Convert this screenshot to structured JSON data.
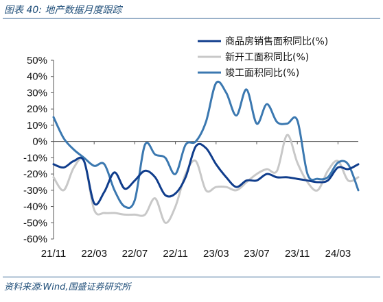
{
  "figure": {
    "title": "图表 40:  地产数据月度跟踪",
    "source": "资料来源:Wind,国盛证券研究所"
  },
  "chart_data": {
    "type": "line",
    "x": [
      "21/11",
      "21/12",
      "22/01",
      "22/02",
      "22/03",
      "22/04",
      "22/05",
      "22/06",
      "22/07",
      "22/08",
      "22/09",
      "22/10",
      "22/11",
      "22/12",
      "23/01",
      "23/02",
      "23/03",
      "23/04",
      "23/05",
      "23/06",
      "23/07",
      "23/08",
      "23/09",
      "23/10",
      "23/11",
      "23/12",
      "24/01",
      "24/02",
      "24/03",
      "24/04",
      "24/05"
    ],
    "x_tick_labels": [
      "21/11",
      "22/03",
      "22/07",
      "22/11",
      "23/03",
      "23/07",
      "23/11",
      "24/03"
    ],
    "ylim": [
      -60,
      50
    ],
    "yticks": [
      -60,
      -50,
      -40,
      -30,
      -20,
      -10,
      0,
      10,
      20,
      30,
      40,
      50
    ],
    "ytick_labels": [
      "-60%",
      "-50%",
      "-40%",
      "-30%",
      "-20%",
      "-10%",
      "0%",
      "10%",
      "20%",
      "30%",
      "40%",
      "50%"
    ],
    "legend_position": "top-right",
    "series": [
      {
        "name": "商品房销售面积同比(%)",
        "color": "#103d8c",
        "values": [
          -14,
          -16,
          -12,
          -12,
          -38,
          -31,
          -19,
          -29,
          -24,
          -18,
          -22,
          -33,
          -32,
          -22,
          -3,
          -4,
          -14,
          -22,
          -28,
          -24,
          -24,
          -20,
          -22,
          -22,
          -23,
          -24,
          -25,
          -24,
          -16,
          -17,
          -14
        ]
      },
      {
        "name": "新开工面积同比(%)",
        "color": "#c8c8c8",
        "values": [
          -22,
          -30,
          -16,
          -12,
          -42,
          -44,
          -44,
          -45,
          -45,
          -45,
          -35,
          -50,
          -40,
          -20,
          -12,
          -30,
          -28,
          -28,
          -30,
          -25,
          -20,
          -17,
          -18,
          4,
          -13,
          -25,
          -30,
          -18,
          -12,
          -24,
          -22
        ]
      },
      {
        "name": "竣工面积同比(%)",
        "color": "#3b78b0",
        "values": [
          15,
          2,
          -5,
          -10,
          -15,
          -14,
          -30,
          -40,
          -36,
          -2,
          -8,
          -10,
          -20,
          -2,
          0,
          12,
          36,
          30,
          16,
          32,
          11,
          23,
          12,
          11,
          13,
          -20,
          -23,
          -22,
          -13,
          -14,
          -30
        ]
      }
    ]
  }
}
